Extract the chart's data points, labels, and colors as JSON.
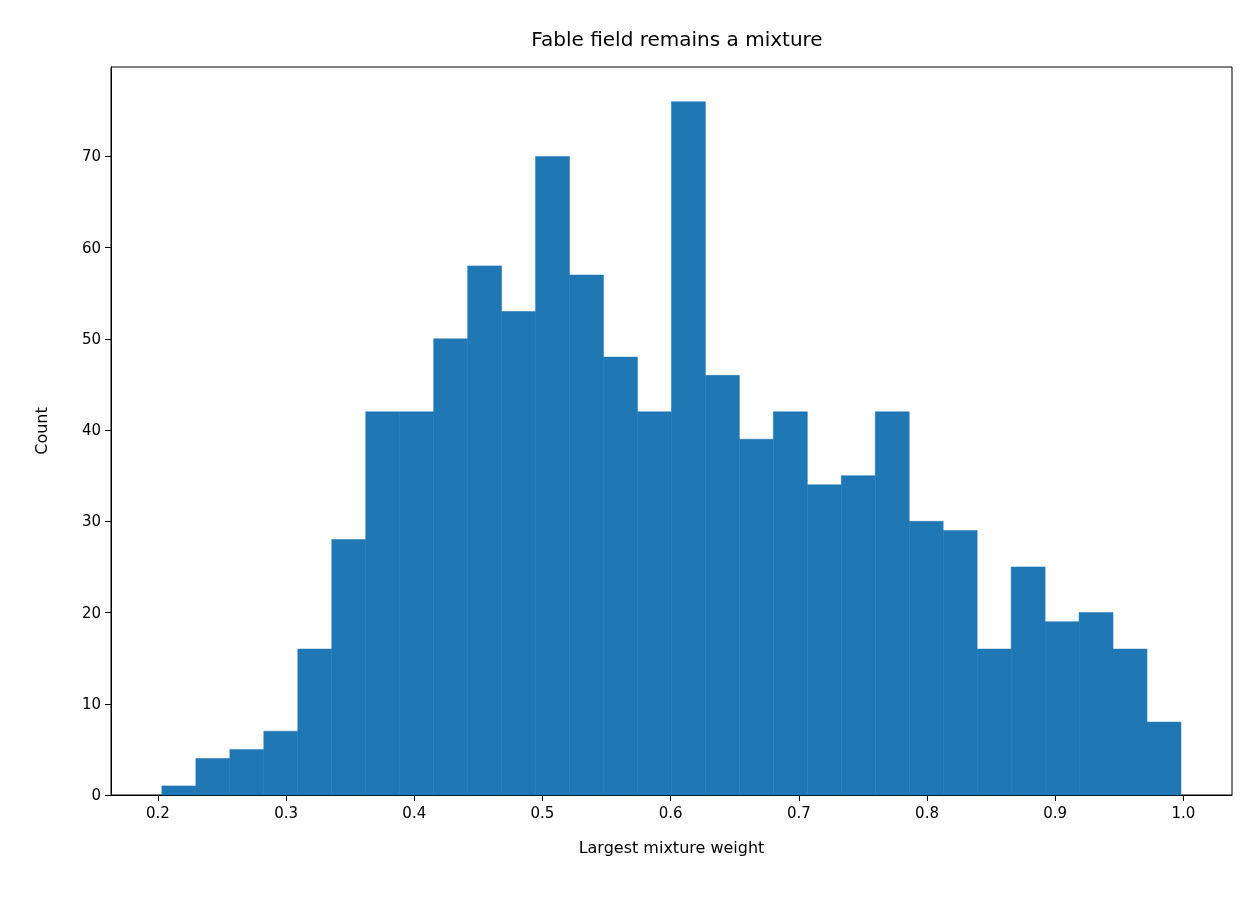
{
  "chart_data": {
    "type": "histogram",
    "title": "Fable field remains a mixture",
    "xlabel": "Largest mixture weight",
    "ylabel": "Count",
    "bins": [
      0.2031,
      0.2296,
      0.2561,
      0.2826,
      0.3091,
      0.3356,
      0.3621,
      0.3886,
      0.4151,
      0.4416,
      0.4681,
      0.4946,
      0.5211,
      0.5476,
      0.5741,
      0.6006,
      0.6271,
      0.6536,
      0.6801,
      0.7066,
      0.7331,
      0.7596,
      0.7861,
      0.8126,
      0.8391,
      0.8656,
      0.8921,
      0.9186,
      0.9451,
      0.9716,
      0.9981
    ],
    "values": [
      1,
      4,
      5,
      7,
      16,
      28,
      42,
      42,
      50,
      58,
      53,
      70,
      57,
      48,
      42,
      76,
      46,
      39,
      42,
      34,
      35,
      42,
      30,
      29,
      16,
      25,
      19,
      20,
      16,
      8
    ],
    "color": "#1f77b4",
    "xlim": [
      0.1634,
      1.0379
    ],
    "xticks": [
      0.2,
      0.3,
      0.4,
      0.5,
      0.6,
      0.7,
      0.8,
      0.9,
      {
        "value": 1,
        "label": "1.0"
      }
    ],
    "ylim": [
      0,
      79.8
    ],
    "yticks": [
      0,
      10,
      20,
      30,
      40,
      50,
      60,
      70
    ],
    "grid": false
  }
}
